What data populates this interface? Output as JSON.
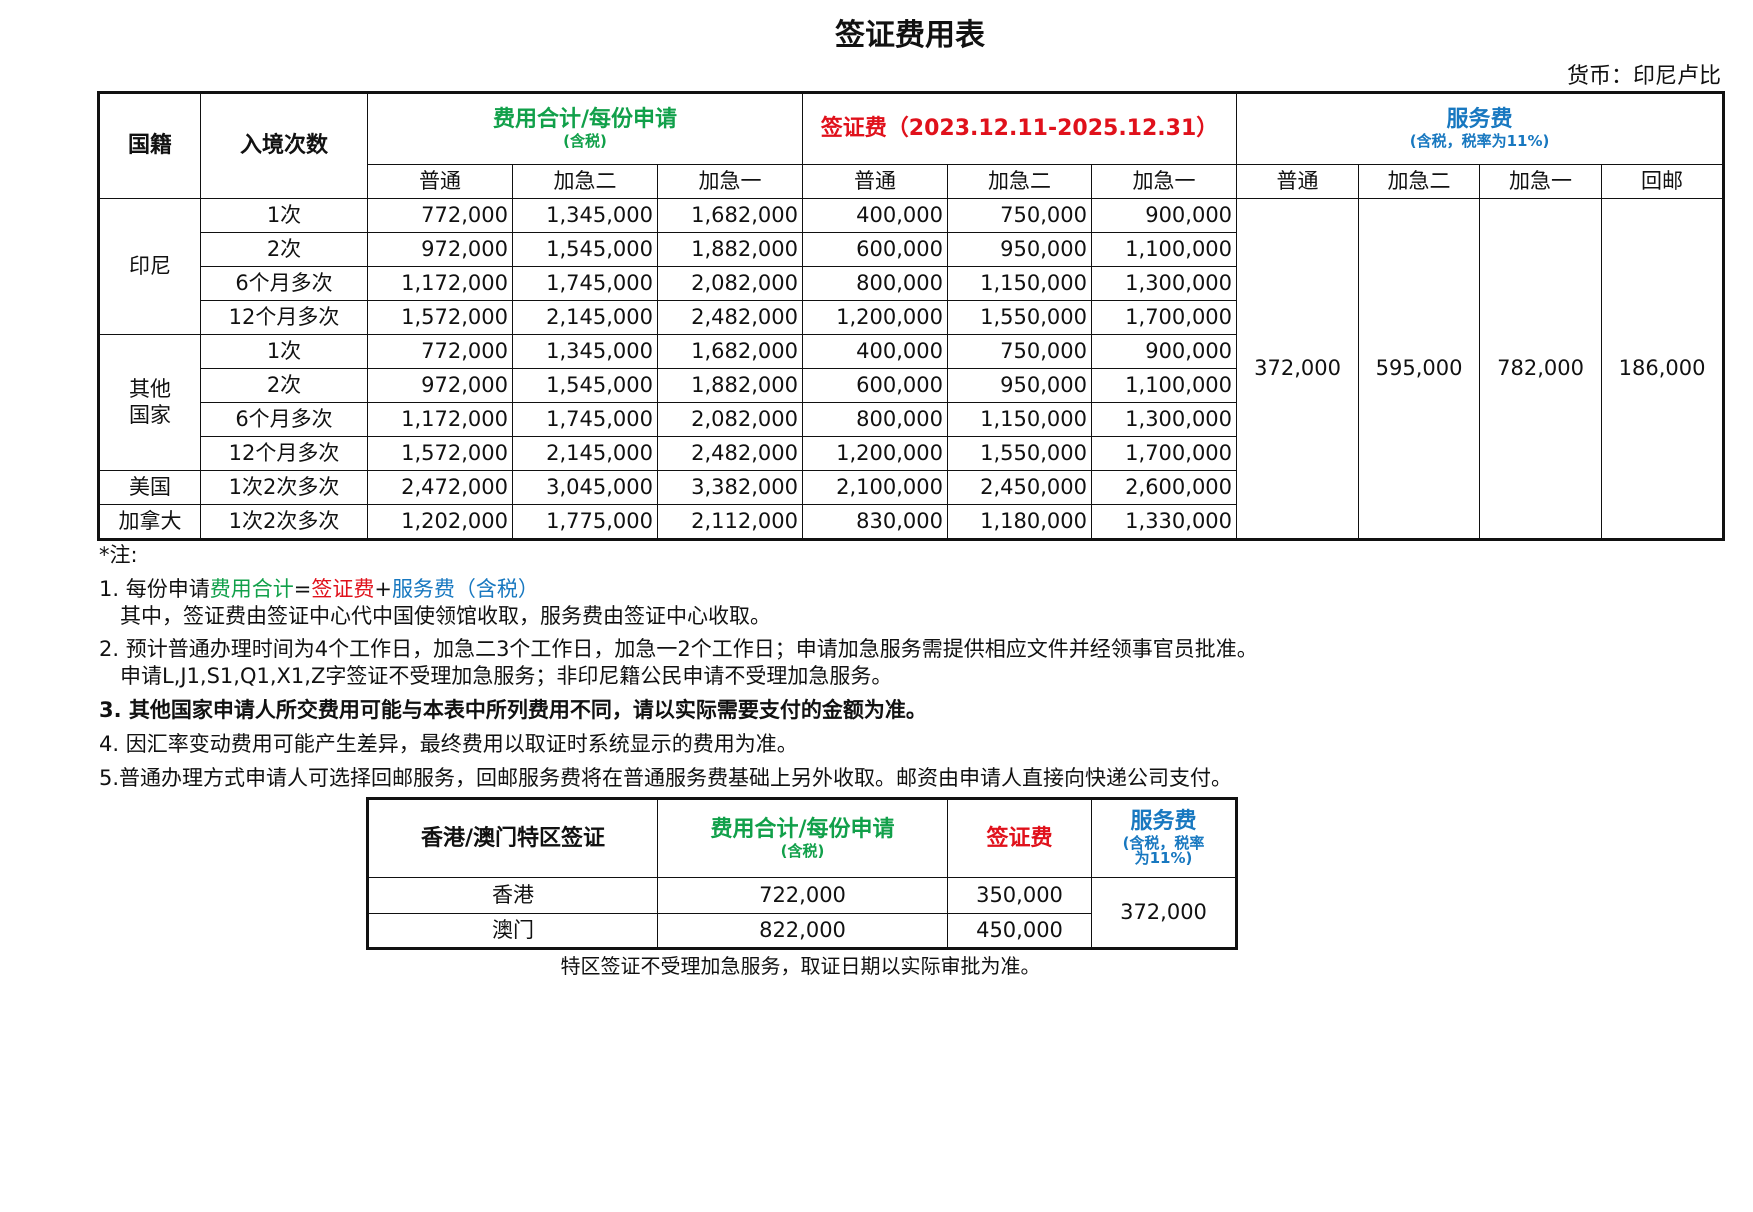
{
  "title": "签证费用表",
  "currency": "货币：印尼卢比",
  "main_table": {
    "headers": {
      "nationality": "国籍",
      "entries": "入境次数",
      "total": "费用合计/每份申请",
      "total_sub": "(含税)",
      "visa_fee": "签证费（2023.12.11-2025.12.31）",
      "service_fee": "服务费",
      "service_fee_sub": "(含税，税率为11%)",
      "sub_columns": [
        "普通",
        "加急二",
        "加急一",
        "普通",
        "加急二",
        "加急一",
        "普通",
        "加急二",
        "加急一",
        "回邮"
      ]
    },
    "groups": [
      {
        "nationality": "印尼",
        "rows": [
          {
            "entries": "1次",
            "values": [
              "772,000",
              "1,345,000",
              "1,682,000",
              "400,000",
              "750,000",
              "900,000"
            ]
          },
          {
            "entries": "2次",
            "values": [
              "972,000",
              "1,545,000",
              "1,882,000",
              "600,000",
              "950,000",
              "1,100,000"
            ]
          },
          {
            "entries": "6个月多次",
            "values": [
              "1,172,000",
              "1,745,000",
              "2,082,000",
              "800,000",
              "1,150,000",
              "1,300,000"
            ]
          },
          {
            "entries": "12个月多次",
            "values": [
              "1,572,000",
              "2,145,000",
              "2,482,000",
              "1,200,000",
              "1,550,000",
              "1,700,000"
            ]
          }
        ]
      },
      {
        "nationality": "其他\n国家",
        "rows": [
          {
            "entries": "1次",
            "values": [
              "772,000",
              "1,345,000",
              "1,682,000",
              "400,000",
              "750,000",
              "900,000"
            ]
          },
          {
            "entries": "2次",
            "values": [
              "972,000",
              "1,545,000",
              "1,882,000",
              "600,000",
              "950,000",
              "1,100,000"
            ]
          },
          {
            "entries": "6个月多次",
            "values": [
              "1,172,000",
              "1,745,000",
              "2,082,000",
              "800,000",
              "1,150,000",
              "1,300,000"
            ]
          },
          {
            "entries": "12个月多次",
            "values": [
              "1,572,000",
              "2,145,000",
              "2,482,000",
              "1,200,000",
              "1,550,000",
              "1,700,000"
            ]
          }
        ]
      },
      {
        "nationality": "美国",
        "rows": [
          {
            "entries": "1次2次多次",
            "values": [
              "2,472,000",
              "3,045,000",
              "3,382,000",
              "2,100,000",
              "2,450,000",
              "2,600,000"
            ]
          }
        ]
      },
      {
        "nationality": "加拿大",
        "rows": [
          {
            "entries": "1次2次多次",
            "values": [
              "1,202,000",
              "1,775,000",
              "2,112,000",
              "830,000",
              "1,180,000",
              "1,330,000"
            ]
          }
        ]
      }
    ],
    "service_fees": [
      "372,000",
      "595,000",
      "782,000",
      "186,000"
    ]
  },
  "notes": {
    "heading": "*注:",
    "n1_prefix": "1. 每份申请",
    "n1_total": "费用合计",
    "n1_eq": "=",
    "n1_visa": "签证费",
    "n1_plus": "+",
    "n1_service": "服务费（含税）",
    "n1_line2": "其中，签证费由签证中心代中国使领馆收取，服务费由签证中心收取。",
    "n2_line1": "2. 预计普通办理时间为4个工作日，加急二3个工作日，加急一2个工作日；申请加急服务需提供相应文件并经领事官员批准。",
    "n2_line2": "申请L,J1,S1,Q1,X1,Z字签证不受理加急服务；非印尼籍公民申请不受理加急服务。",
    "n3": "3. 其他国家申请人所交费用可能与本表中所列费用不同，请以实际需要支付的金额为准。",
    "n4": "4. 因汇率变动费用可能产生差异，最终费用以取证时系统显示的费用为准。",
    "n5": "5.普通办理方式申请人可选择回邮服务，回邮服务费将在普通服务费基础上另外收取。邮资由申请人直接向快递公司支付。"
  },
  "sar_table": {
    "headers": {
      "region": "香港/澳门特区签证",
      "total": "费用合计/每份申请",
      "total_sub": "(含税)",
      "visa_fee": "签证费",
      "service_fee": "服务费",
      "service_fee_sub": "(含税，税率\n为11%)"
    },
    "rows": [
      {
        "region": "香港",
        "total": "722,000",
        "visa_fee": "350,000"
      },
      {
        "region": "澳门",
        "total": "822,000",
        "visa_fee": "450,000"
      }
    ],
    "service_fee": "372,000",
    "footnote": "特区签证不受理加急服务，取证日期以实际审批为准。"
  },
  "colors": {
    "total": "#11a04a",
    "visa_fee": "#e0111b",
    "service_fee": "#1878c0"
  }
}
